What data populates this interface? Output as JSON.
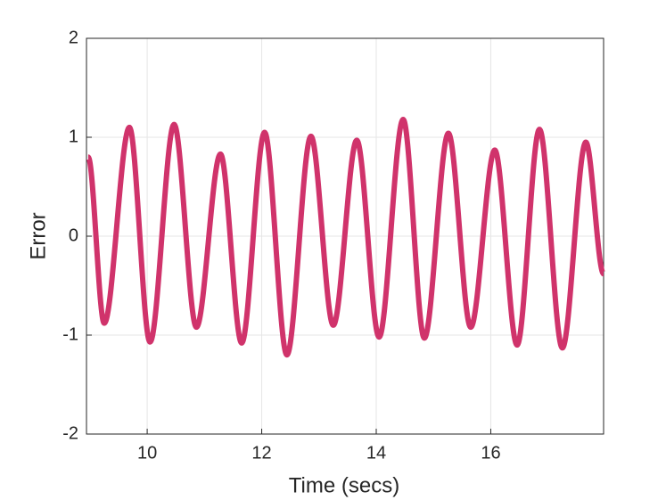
{
  "chart_data": {
    "type": "line",
    "x_label": "Time (secs)",
    "y_label": "Error",
    "xlim": [
      8.94,
      17.97
    ],
    "ylim": [
      -2,
      2
    ],
    "xticks": [
      10,
      12,
      14,
      16
    ],
    "yticks": [
      -2,
      -1,
      0,
      1,
      2
    ],
    "grid": true,
    "series": [
      {
        "color": "#d0336b",
        "x": [
          8.97,
          9.25,
          9.69,
          10.05,
          10.47,
          10.86,
          11.28,
          11.65,
          12.05,
          12.44,
          12.86,
          13.25,
          13.66,
          14.05,
          14.47,
          14.84,
          15.26,
          15.65,
          16.07,
          16.46,
          16.85,
          17.25,
          17.66,
          17.97
        ],
        "values": [
          0.8,
          -0.88,
          1.1,
          -1.07,
          1.13,
          -0.92,
          0.83,
          -1.08,
          1.05,
          -1.2,
          1.01,
          -0.9,
          0.97,
          -1.02,
          1.18,
          -1.03,
          1.04,
          -0.92,
          0.87,
          -1.1,
          1.08,
          -1.13,
          0.95,
          -0.38
        ]
      }
    ]
  }
}
